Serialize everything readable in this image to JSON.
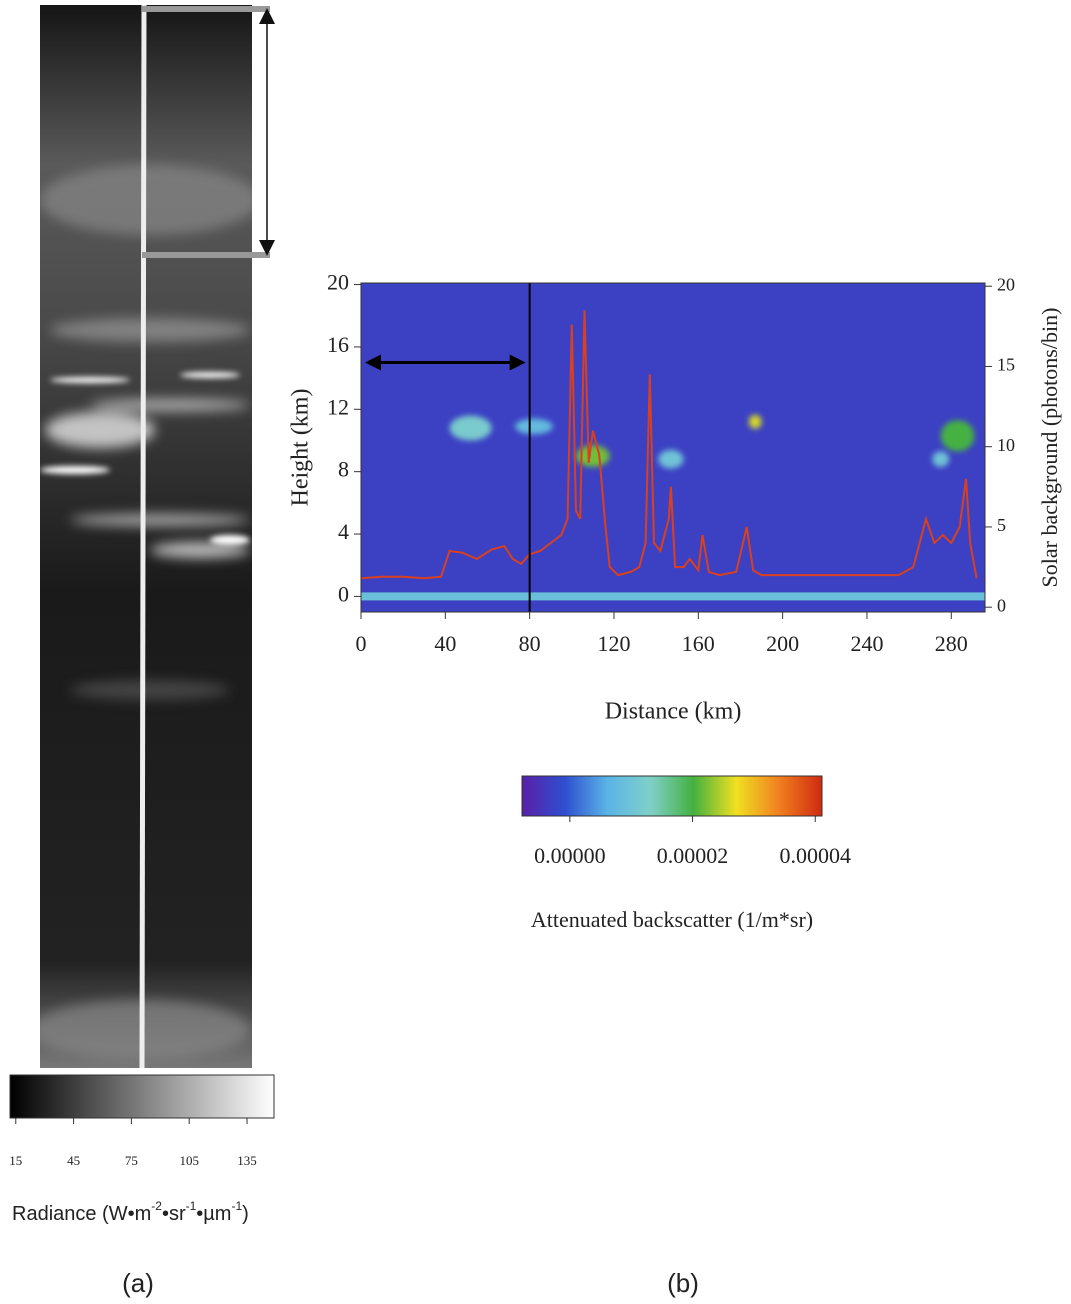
{
  "chart_data": [
    {
      "type": "image",
      "panel_label": "(a)",
      "colorbar": {
        "label": [
          "Radiance (W•m",
          "-2",
          "•sr",
          "-1",
          "•µm",
          "-1",
          ")"
        ],
        "clim": [
          12,
          149
        ],
        "ticks": [
          15,
          45,
          75,
          105,
          135
        ],
        "colors": [
          "#000000",
          "#ffffff"
        ]
      }
    },
    {
      "type": "line",
      "panel_label": "(b)",
      "xlabel": "Distance (km)",
      "ylabel": "Height (km)",
      "y2label": "Solar background (photons/bin)",
      "xlim": [
        0,
        296
      ],
      "xticks": [
        0,
        40,
        80,
        120,
        160,
        200,
        240,
        280
      ],
      "ylim": [
        -1,
        20.1
      ],
      "yticks": [
        0,
        4,
        8,
        12,
        16,
        20
      ],
      "y2lim": [
        -0.3,
        20.2
      ],
      "y2ticks": [
        0,
        5,
        10,
        15,
        20
      ],
      "x": [
        0,
        10,
        20,
        30,
        38,
        42,
        48,
        55,
        62,
        68,
        72,
        76,
        80,
        85,
        90,
        95,
        98,
        100,
        102,
        104,
        106,
        108,
        110,
        113,
        116,
        118,
        122,
        128,
        132,
        135,
        137,
        139,
        142,
        146,
        147,
        149,
        153,
        156,
        160,
        162,
        165,
        170,
        178,
        183,
        186,
        190,
        200,
        220,
        240,
        255,
        262,
        268,
        272,
        276,
        280,
        284,
        287,
        289,
        292
      ],
      "series": [
        {
          "color": "#d9401f",
          "axis": "y2",
          "values": [
            1.8,
            1.9,
            1.9,
            1.8,
            1.9,
            3.5,
            3.4,
            3.0,
            3.6,
            3.8,
            3.0,
            2.7,
            3.3,
            3.5,
            4.0,
            4.5,
            5.5,
            17.6,
            6.0,
            5.5,
            18.5,
            9.0,
            11.0,
            9.5,
            5.0,
            2.5,
            2.0,
            2.2,
            2.5,
            4.0,
            14.5,
            4.0,
            3.5,
            5.5,
            7.5,
            2.5,
            2.5,
            3.0,
            2.3,
            4.5,
            2.2,
            2.0,
            2.2,
            5.0,
            2.3,
            2.0,
            2.0,
            2.0,
            2.0,
            2.0,
            2.5,
            5.5,
            4.0,
            4.5,
            4.0,
            5.0,
            8.0,
            4.0,
            1.8
          ]
        }
      ],
      "heatmap": {
        "background": -3e-06,
        "surface": {
          "y": 0,
          "value": 9e-06
        },
        "clouds": [
          {
            "x": 52,
            "y": 10.8,
            "width": 20,
            "height": 1.6,
            "value": 1.2e-05
          },
          {
            "x": 82,
            "y": 10.9,
            "width": 18,
            "height": 1.0,
            "value": 8e-06
          },
          {
            "x": 110,
            "y": 9.0,
            "width": 16,
            "height": 1.4,
            "value": 2.2e-05
          },
          {
            "x": 147,
            "y": 8.8,
            "width": 12,
            "height": 1.2,
            "value": 1e-05
          },
          {
            "x": 187,
            "y": 11.2,
            "width": 6,
            "height": 0.9,
            "value": 2.6e-05
          },
          {
            "x": 283,
            "y": 10.3,
            "width": 16,
            "height": 2,
            "value": 2e-05
          },
          {
            "x": 275,
            "y": 8.8,
            "width": 8,
            "height": 1,
            "value": 1e-05
          }
        ]
      },
      "marker_x": 80,
      "arrow": {
        "x": [
          0,
          80
        ],
        "y": 15
      },
      "colorbar": {
        "label": "Attenuated backscatter (1/m*sr)",
        "clim": [
          -7.8e-06,
          4.11e-05
        ],
        "ticks": [
          {
            "value": 0,
            "label": "0.00000"
          },
          {
            "value": 2e-05,
            "label": "0.00002"
          },
          {
            "value": 4e-05,
            "label": "0.00004"
          }
        ],
        "colors": [
          "#5a1fa8",
          "#2f4fd0",
          "#5ab4e6",
          "#80d0c8",
          "#44b040",
          "#f0e020",
          "#f08020",
          "#d02a10"
        ]
      }
    }
  ]
}
